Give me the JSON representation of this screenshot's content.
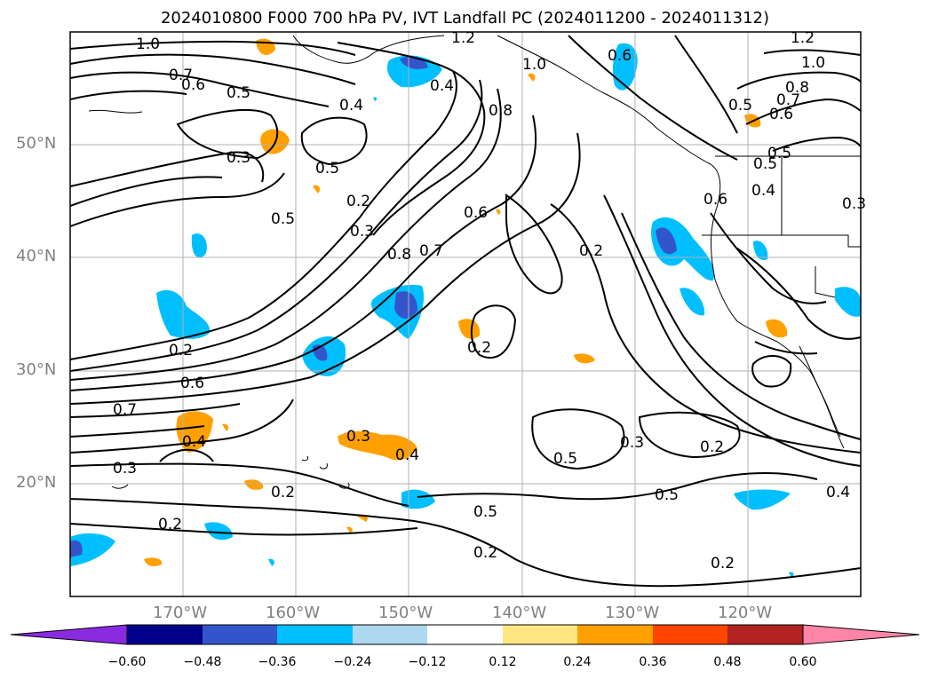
{
  "title": "2024010800 F000 700 hPa PV, IVT Landfall PC (2024011200 - 2024011312)",
  "latitude_labels": [
    "50°N",
    "40°N",
    "30°N",
    "20°N"
  ],
  "longitude_labels": [
    "170°W",
    "160°W",
    "150°W",
    "140°W",
    "130°W",
    "120°W"
  ],
  "contour_labels": [
    "1.0",
    "0.7",
    "0.6",
    "0.5",
    "0.4",
    "0.3",
    "0.5",
    "0.5",
    "1.2",
    "1.0",
    "0.4",
    "0.8",
    "0.6",
    "0.2",
    "0.3",
    "0.8",
    "0.7",
    "0.6",
    "0.2",
    "0.5",
    "0.6",
    "1.2",
    "1.0",
    "0.8",
    "0.7",
    "0.6",
    "0.5",
    "0.5",
    "0.4",
    "0.3",
    "0.2",
    "0.6",
    "0.7",
    "0.4",
    "0.3",
    "0.2",
    "0.2",
    "0.2",
    "0.3",
    "0.4",
    "0.5",
    "0.3",
    "0.2",
    "0.5",
    "0.5",
    "0.2",
    "0.2",
    "0.4"
  ],
  "colorbar": {
    "ticks": [
      "−0.60",
      "−0.48",
      "−0.36",
      "−0.24",
      "−0.12",
      "0.12",
      "0.24",
      "0.36",
      "0.48",
      "0.60"
    ],
    "colors": [
      "#8a2be2",
      "#00008b",
      "#3355cc",
      "#00bfff",
      "#add8f0",
      "#ffffff",
      "#ffe680",
      "#ffa000",
      "#ff4500",
      "#b22222",
      "#ff85a8"
    ]
  },
  "colors": {
    "land_outline": "#000000",
    "grid": "#b0b0b0",
    "axis_label": "#808080"
  }
}
